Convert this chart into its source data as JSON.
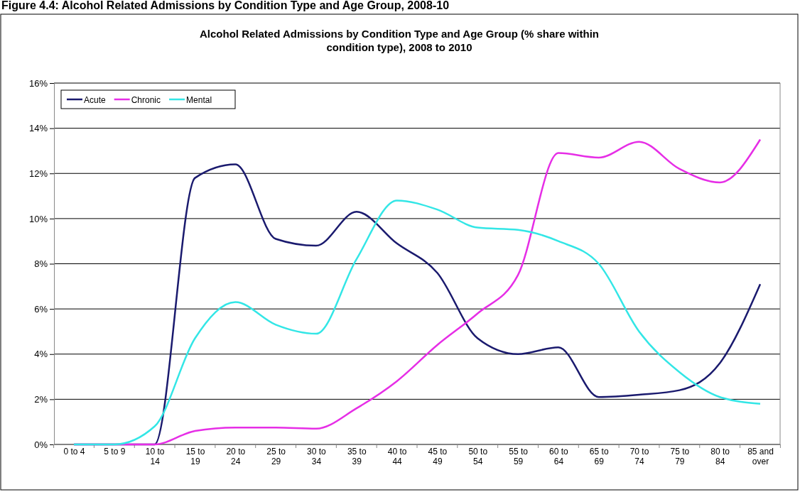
{
  "chart_data": {
    "type": "line",
    "title": "Figure 4.4: Alcohol Related Admissions by Condition Type and Age Group, 2008-10",
    "subtitle": "Alcohol Related Admissions by Condition Type and Age Group (% share within condition type), 2008 to 2010",
    "categories": [
      "0 to 4",
      "5 to 9",
      "10 to 14",
      "15 to 19",
      "20 to 24",
      "25 to 29",
      "30 to 34",
      "35 to 39",
      "40 to 44",
      "45 to 49",
      "50 to 54",
      "55 to 59",
      "60 to 64",
      "65 to 69",
      "70 to 74",
      "75 to 79",
      "80 to 84",
      "85 and over"
    ],
    "series": [
      {
        "name": "Acute",
        "color": "#1a1a6e",
        "values": [
          0,
          0,
          0,
          11.8,
          12.4,
          9.1,
          8.8,
          10.3,
          8.9,
          7.6,
          4.7,
          4.0,
          4.3,
          2.1,
          2.2,
          2.4,
          3.6,
          7.1
        ]
      },
      {
        "name": "Chronic",
        "color": "#e62ee6",
        "values": [
          0,
          0,
          0,
          0.6,
          0.75,
          0.75,
          0.7,
          1.6,
          2.8,
          4.4,
          5.8,
          7.5,
          12.9,
          12.7,
          13.4,
          12.2,
          11.6,
          13.5
        ]
      },
      {
        "name": "Mental",
        "color": "#33e6e6",
        "values": [
          0,
          0,
          0.8,
          4.7,
          6.3,
          5.3,
          4.9,
          8.2,
          10.8,
          10.4,
          9.6,
          9.5,
          9.0,
          8.0,
          5.0,
          3.2,
          2.1,
          1.8
        ]
      }
    ],
    "ylim": [
      0,
      16
    ],
    "yticks": [
      {
        "value": 0,
        "label": "0%"
      },
      {
        "value": 2,
        "label": "2%"
      },
      {
        "value": 4,
        "label": "4%"
      },
      {
        "value": 6,
        "label": "6%"
      },
      {
        "value": 8,
        "label": "8%"
      },
      {
        "value": 10,
        "label": "10%"
      },
      {
        "value": 12,
        "label": "12%"
      },
      {
        "value": 14,
        "label": "14%"
      },
      {
        "value": 16,
        "label": "16%"
      }
    ],
    "grid": "y",
    "legend": "top left",
    "marker": "none",
    "line_style": "solid"
  }
}
